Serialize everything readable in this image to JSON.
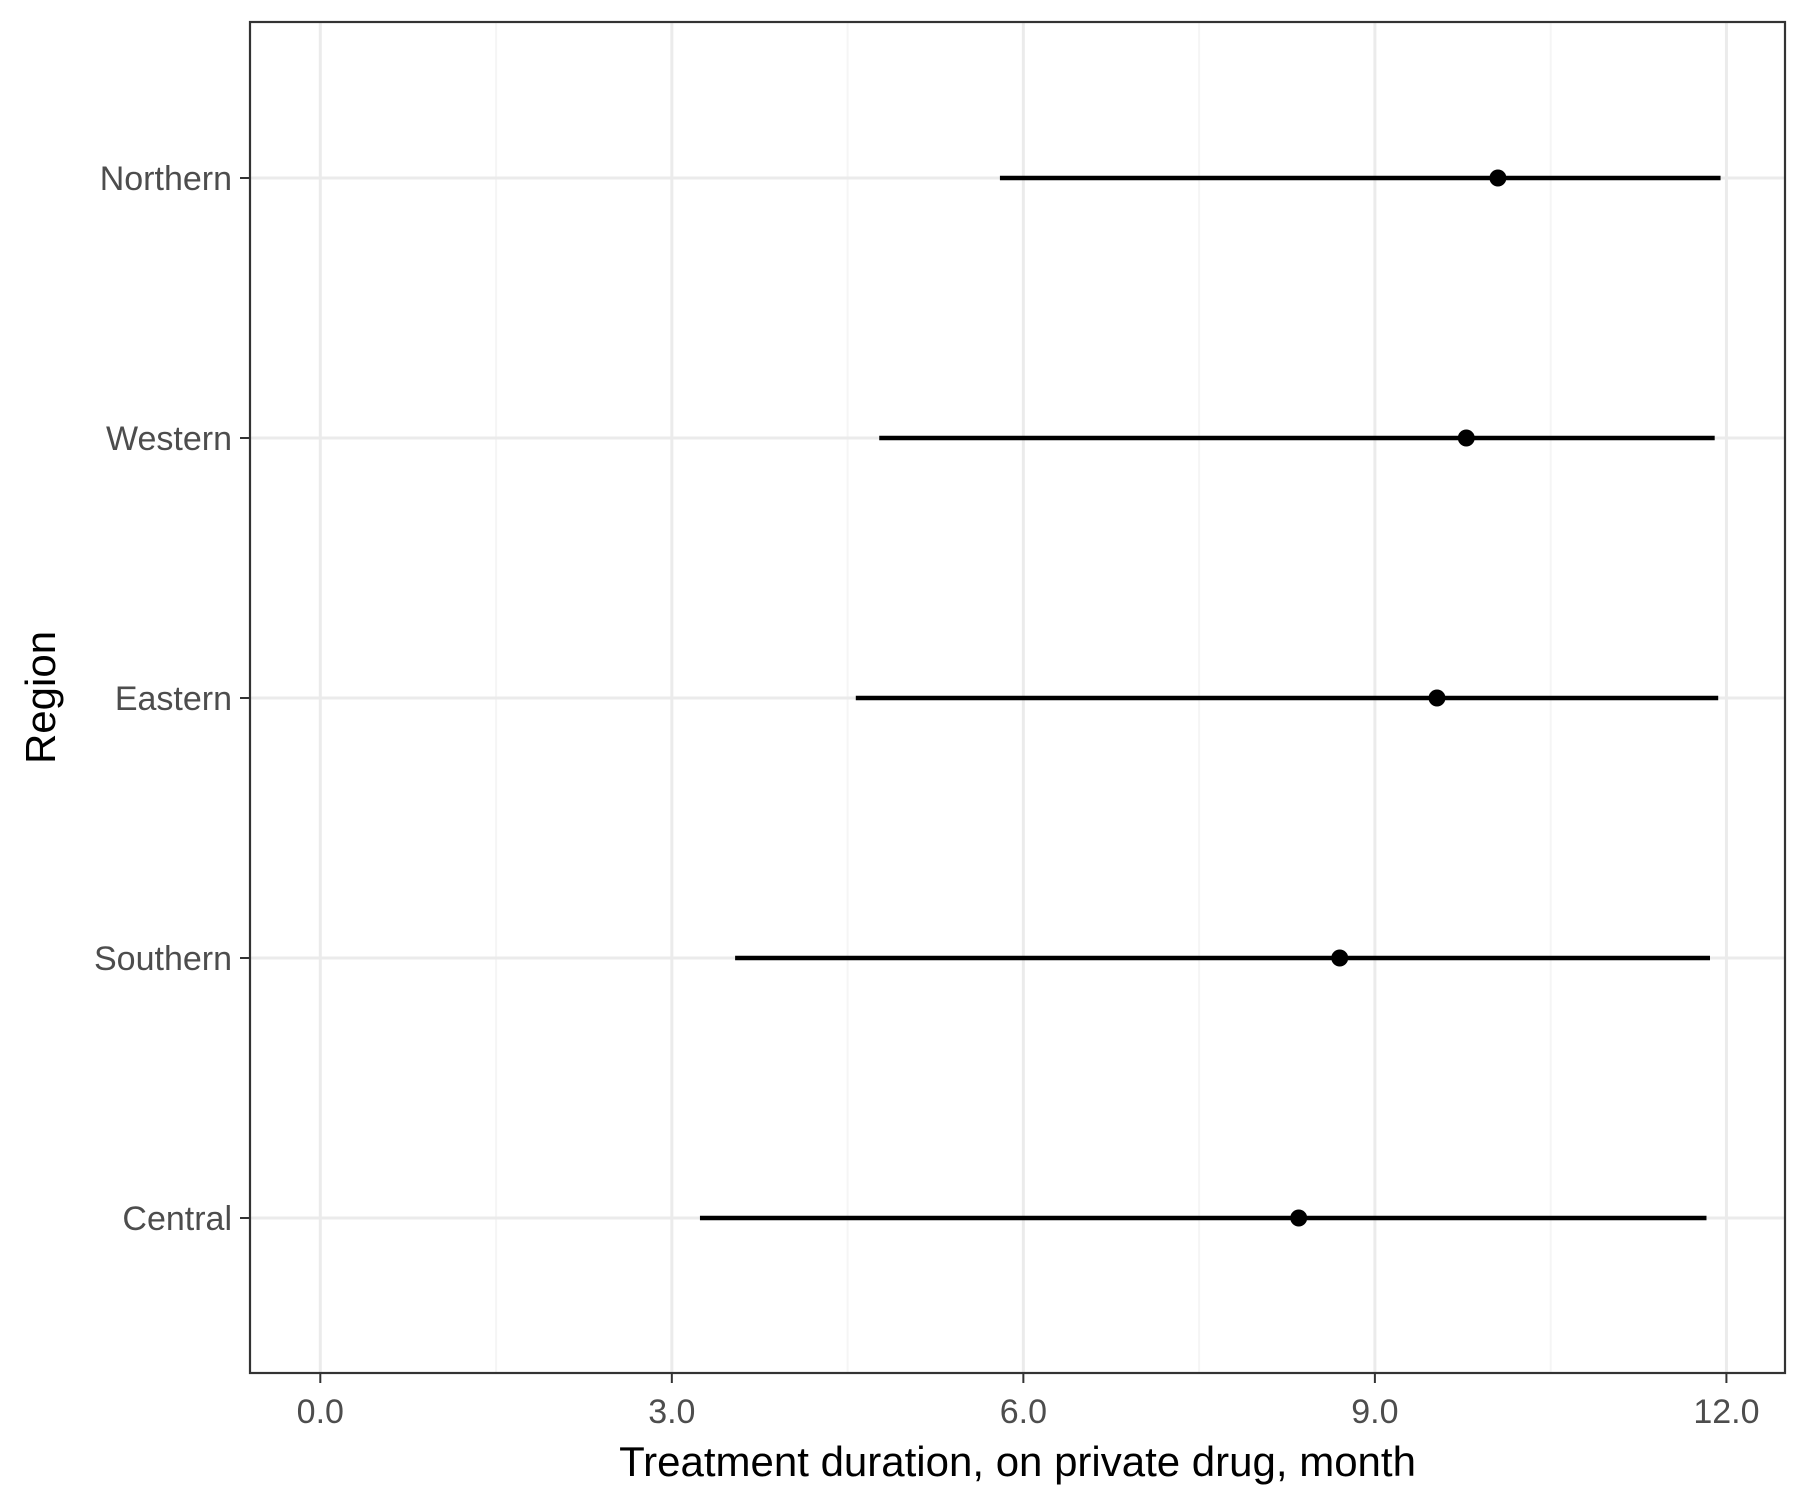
{
  "chart_data": {
    "type": "scatter",
    "subtype": "point-range",
    "title": "",
    "xlabel": "Treatment duration, on private drug, month",
    "ylabel": "Region",
    "xlim": [
      -0.6,
      12.5
    ],
    "x_ticks": [
      "0.0",
      "3.0",
      "6.0",
      "9.0",
      "12.0"
    ],
    "x_tick_values": [
      0,
      3,
      6,
      9,
      12
    ],
    "grid": true,
    "legend": "none",
    "categories": [
      "Northern",
      "Western",
      "Eastern",
      "Southern",
      "Central"
    ],
    "series": [
      {
        "estimate": [
          10.05,
          9.78,
          9.53,
          8.7,
          8.35
        ],
        "lower": [
          5.8,
          4.77,
          4.57,
          3.54,
          3.24
        ],
        "upper": [
          11.95,
          11.9,
          11.93,
          11.86,
          11.83
        ]
      }
    ],
    "colors": {
      "point": "#000000",
      "interval": "#000000",
      "grid_major": "#ebebeb",
      "grid_minor": "#f5f5f5",
      "panel_border": "#333333",
      "tick_text": "#4d4d4d"
    }
  }
}
